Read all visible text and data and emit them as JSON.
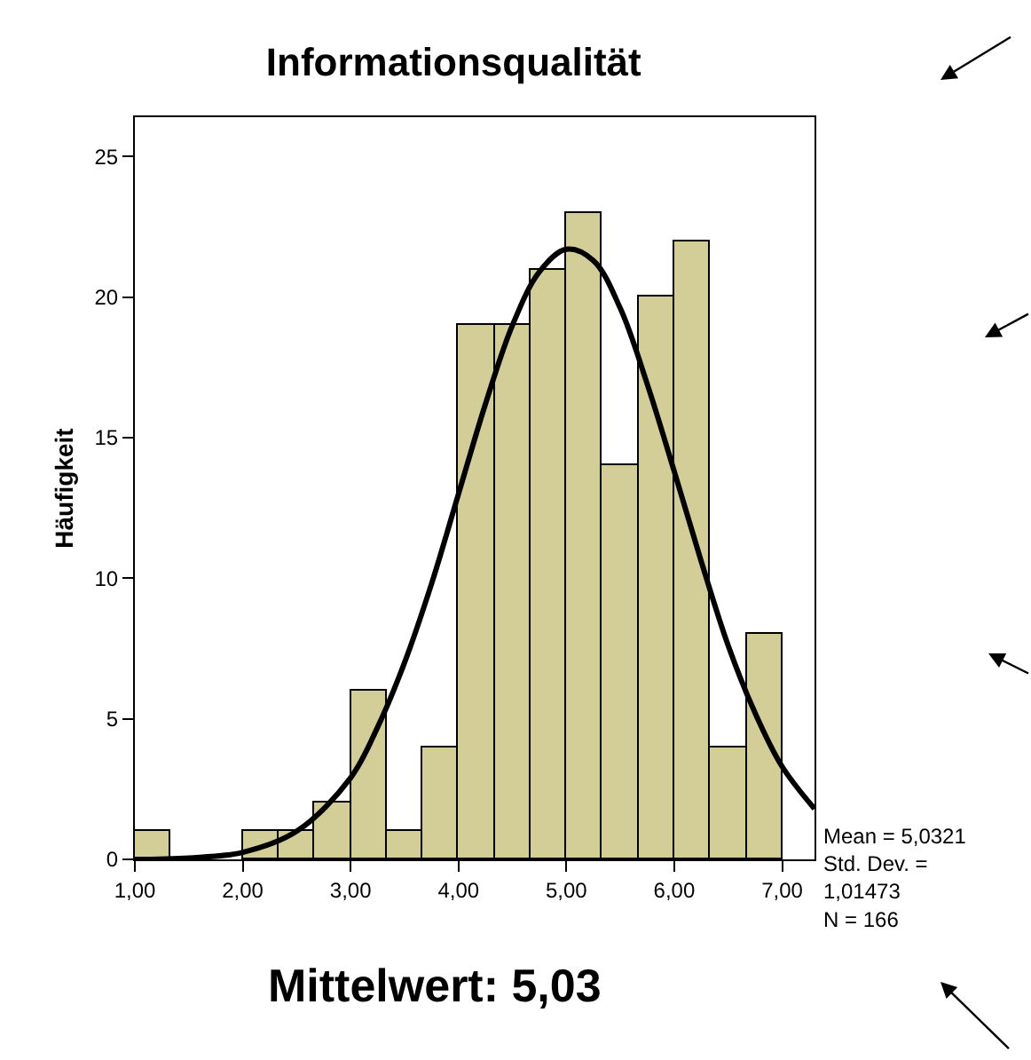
{
  "chart_data": {
    "type": "histogram",
    "title": "Informationsqualität",
    "ylabel": "Häufigkeit",
    "bins": [
      1,
      1.333,
      1.667,
      2,
      2.333,
      2.667,
      3,
      3.333,
      3.667,
      4,
      4.333,
      4.667,
      5,
      5.333,
      5.667,
      6,
      6.333,
      6.667,
      7
    ],
    "values": [
      1,
      0,
      0,
      1,
      1,
      2,
      6,
      1,
      4,
      19,
      19,
      21,
      23,
      14,
      20,
      22,
      4,
      8
    ],
    "color": "#d3cd98",
    "series": [
      {
        "type": "line",
        "color": "#000000",
        "x": [
          1,
          1.5,
          2,
          2.5,
          3,
          3.25,
          3.5,
          3.75,
          4,
          4.25,
          4.5,
          4.75,
          5,
          5.25,
          5.5,
          5.75,
          6,
          6.25,
          6.5,
          6.75,
          7,
          7.3
        ],
        "values": [
          0,
          0.05,
          0.25,
          1.0,
          2.9,
          4.7,
          7.0,
          9.8,
          13.0,
          16.2,
          19.0,
          20.9,
          21.7,
          21.3,
          19.6,
          16.9,
          13.8,
          10.6,
          7.6,
          5.2,
          3.3,
          1.8
        ]
      }
    ],
    "xlim": [
      1,
      7.3
    ],
    "xticks": [
      {
        "value": 1,
        "label": "1,00"
      },
      {
        "value": 2,
        "label": "2,00"
      },
      {
        "value": 3,
        "label": "3,00"
      },
      {
        "value": 4,
        "label": "4,00"
      },
      {
        "value": 5,
        "label": "5,00"
      },
      {
        "value": 6,
        "label": "6,00"
      },
      {
        "value": 7,
        "label": "7,00"
      }
    ],
    "ylim": [
      0,
      26.4
    ],
    "yticks": [
      0,
      5,
      10,
      15,
      20,
      25
    ],
    "annotations": [
      "Mean = 5,0321\nStd. Dev. =\n1,01473\nN = 166",
      "Mittelwert: 5,03"
    ]
  }
}
